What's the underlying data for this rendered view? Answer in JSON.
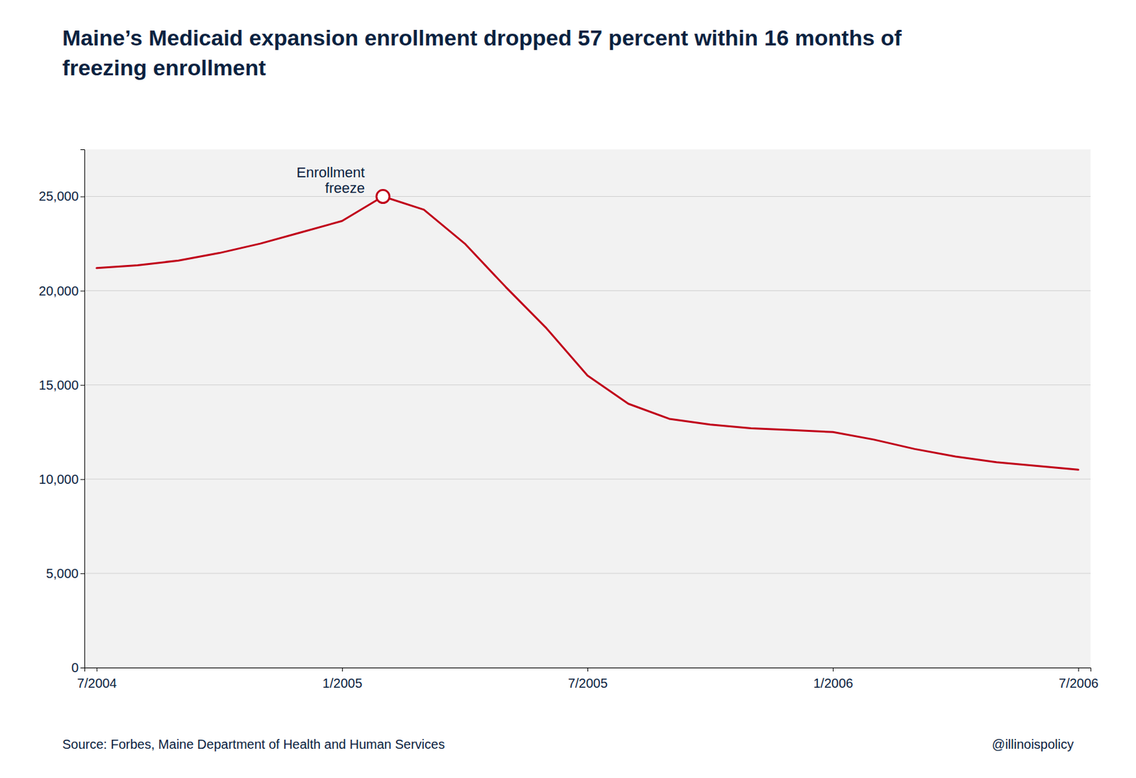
{
  "chart_data": {
    "type": "line",
    "title": [
      "Maine’s Medicaid  expansion enrollment dropped 57 percent within 16 months of",
      "freezing enrollment"
    ],
    "source": "Source: Forbes, Maine Department of Health and Human Services",
    "credit": "@illinoispolicy",
    "x": [
      0,
      1,
      2,
      3,
      4,
      5,
      6,
      7,
      8,
      9,
      10,
      11,
      12,
      13,
      14,
      15,
      16,
      17,
      18,
      19,
      20,
      21,
      22,
      23,
      24
    ],
    "series": [
      {
        "color": "#c0001a",
        "values": [
          21200,
          21350,
          21600,
          22000,
          22500,
          23100,
          23700,
          25000,
          24300,
          22500,
          20200,
          18000,
          15500,
          14000,
          13200,
          12900,
          12700,
          12600,
          12500,
          12100,
          11600,
          11200,
          10900,
          10700,
          10500
        ]
      }
    ],
    "annotations": [
      {
        "text": "Enrollment\nfreeze",
        "x": 7,
        "y": 25000
      }
    ],
    "xlim": [
      -0.3,
      24.3
    ],
    "xticks": [
      {
        "value": 0,
        "label": "7/2004"
      },
      {
        "value": 6,
        "label": "1/2005"
      },
      {
        "value": 12,
        "label": "7/2005"
      },
      {
        "value": 18,
        "label": "1/2006"
      },
      {
        "value": 24,
        "label": "7/2006"
      }
    ],
    "ylim": [
      0,
      27500
    ],
    "yticks": [
      0,
      {
        "value": 5000,
        "label": "5,000"
      },
      {
        "value": 10000,
        "label": "10,000"
      },
      {
        "value": 15000,
        "label": "15,000"
      },
      {
        "value": 20000,
        "label": "20,000"
      },
      {
        "value": 25000,
        "label": "25,000"
      }
    ],
    "grid": true
  }
}
